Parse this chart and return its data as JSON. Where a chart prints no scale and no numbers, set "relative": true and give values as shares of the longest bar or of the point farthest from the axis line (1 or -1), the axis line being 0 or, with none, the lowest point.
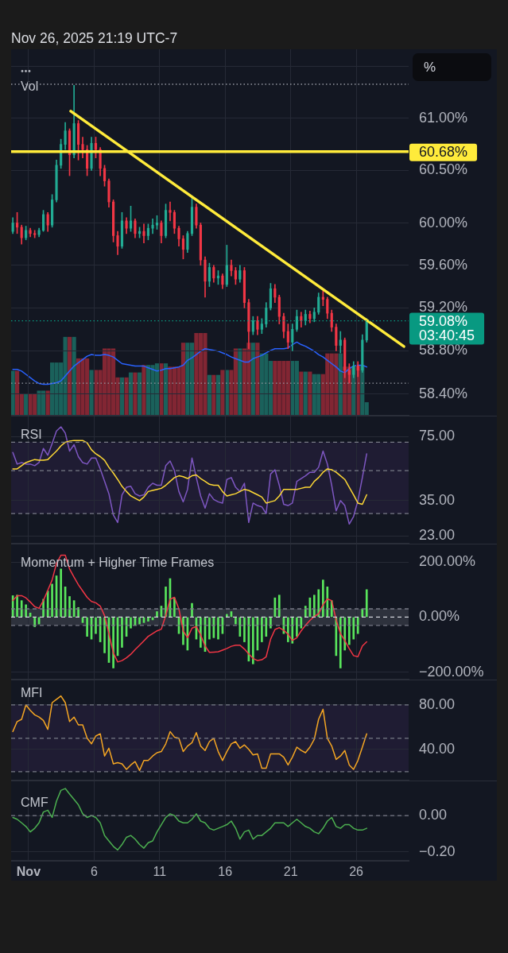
{
  "chart_data": [
    {
      "type": "candlestick",
      "subtitle": "Nov 26, 2025 21:19 UTC-7",
      "x": [
        -0.2,
        0.13,
        0.47,
        0.8,
        1.13,
        1.47,
        1.8,
        2.13,
        2.47,
        2.8,
        3.13,
        3.47,
        3.8,
        4.13,
        4.47,
        4.8,
        5.13,
        5.47,
        5.8,
        6.13,
        6.47,
        6.8,
        7.13,
        7.47,
        7.8,
        8.13,
        8.47,
        8.8,
        9.13,
        9.47,
        9.8,
        10.13,
        10.47,
        10.8,
        11.13,
        11.47,
        11.8,
        12.13,
        12.47,
        12.8,
        13.13,
        13.47,
        13.8,
        14.13,
        14.47,
        14.8,
        15.13,
        15.47,
        15.8,
        16.13,
        16.47,
        16.8,
        17.13,
        17.47,
        17.8,
        18.13,
        18.47,
        18.8,
        19.13,
        19.47,
        19.8,
        20.13,
        20.47,
        20.8,
        21.13,
        21.47,
        21.8,
        22.13,
        22.47,
        22.8,
        23.13,
        23.47,
        23.8,
        24.13,
        24.47,
        24.8,
        25.13,
        25.47,
        25.8,
        26.13,
        26.47,
        26.8
      ],
      "ohlc": [
        [
          59.92,
          60.05,
          59.9,
          60.0
        ],
        [
          60.0,
          60.1,
          59.9,
          59.96
        ],
        [
          59.96,
          59.98,
          59.8,
          59.86
        ],
        [
          59.86,
          59.97,
          59.84,
          59.93
        ],
        [
          59.93,
          59.95,
          59.87,
          59.9
        ],
        [
          59.9,
          59.93,
          59.86,
          59.89
        ],
        [
          59.89,
          59.95,
          59.87,
          59.93
        ],
        [
          59.93,
          60.12,
          59.92,
          60.08
        ],
        [
          60.08,
          60.1,
          59.92,
          59.98
        ],
        [
          59.98,
          60.27,
          59.96,
          60.22
        ],
        [
          60.22,
          60.6,
          60.2,
          60.55
        ],
        [
          60.55,
          60.8,
          60.52,
          60.75
        ],
        [
          60.75,
          60.96,
          60.7,
          60.88
        ],
        [
          60.88,
          60.9,
          60.45,
          60.65
        ],
        [
          60.65,
          61.32,
          60.62,
          60.95
        ],
        [
          60.95,
          60.98,
          60.6,
          60.75
        ],
        [
          60.75,
          60.82,
          60.62,
          60.7
        ],
        [
          60.7,
          60.74,
          60.45,
          60.52
        ],
        [
          60.52,
          60.82,
          60.5,
          60.76
        ],
        [
          60.76,
          60.82,
          60.62,
          60.7
        ],
        [
          60.7,
          60.72,
          60.45,
          60.52
        ],
        [
          60.52,
          60.55,
          60.35,
          60.4
        ],
        [
          60.4,
          60.42,
          60.15,
          60.2
        ],
        [
          60.2,
          60.22,
          59.82,
          59.88
        ],
        [
          59.88,
          59.92,
          59.7,
          59.78
        ],
        [
          59.78,
          60.1,
          59.76,
          60.02
        ],
        [
          60.02,
          60.05,
          59.9,
          59.95
        ],
        [
          59.95,
          60.16,
          59.92,
          60.02
        ],
        [
          60.02,
          60.04,
          59.86,
          59.9
        ],
        [
          59.9,
          59.96,
          59.86,
          59.92
        ],
        [
          59.92,
          59.99,
          59.81,
          59.88
        ],
        [
          59.88,
          59.99,
          59.84,
          59.95
        ],
        [
          59.95,
          60.04,
          59.9,
          59.98
        ],
        [
          59.98,
          60.07,
          59.94,
          60.0
        ],
        [
          60.0,
          60.02,
          59.81,
          59.88
        ],
        [
          59.88,
          60.18,
          59.86,
          60.12
        ],
        [
          60.12,
          60.2,
          60.02,
          60.1
        ],
        [
          60.1,
          60.12,
          59.9,
          59.95
        ],
        [
          59.95,
          59.97,
          59.78,
          59.85
        ],
        [
          59.85,
          59.88,
          59.66,
          59.75
        ],
        [
          59.75,
          59.92,
          59.72,
          59.9
        ],
        [
          59.9,
          60.24,
          59.88,
          60.15
        ],
        [
          60.15,
          60.18,
          59.95,
          59.98
        ],
        [
          59.98,
          60.0,
          59.6,
          59.65
        ],
        [
          59.65,
          59.68,
          59.3,
          59.45
        ],
        [
          59.45,
          59.62,
          59.4,
          59.58
        ],
        [
          59.58,
          59.6,
          59.44,
          59.48
        ],
        [
          59.48,
          59.55,
          59.42,
          59.5
        ],
        [
          59.5,
          59.52,
          59.38,
          59.42
        ],
        [
          59.42,
          59.79,
          59.4,
          59.6
        ],
        [
          59.6,
          59.65,
          59.5,
          59.55
        ],
        [
          59.55,
          59.58,
          59.42,
          59.47
        ],
        [
          59.47,
          59.6,
          59.44,
          59.55
        ],
        [
          59.55,
          59.58,
          59.2,
          59.25
        ],
        [
          59.25,
          59.28,
          58.82,
          58.98
        ],
        [
          58.98,
          59.12,
          58.95,
          59.08
        ],
        [
          59.08,
          59.12,
          58.95,
          59.0
        ],
        [
          59.0,
          59.1,
          58.96,
          59.05
        ],
        [
          59.05,
          59.25,
          59.02,
          59.2
        ],
        [
          59.2,
          59.43,
          59.18,
          59.38
        ],
        [
          59.38,
          59.42,
          59.25,
          59.3
        ],
        [
          59.3,
          59.32,
          59.05,
          59.12
        ],
        [
          59.12,
          59.15,
          58.92,
          58.98
        ],
        [
          58.98,
          59.05,
          58.82,
          58.88
        ],
        [
          58.88,
          59.05,
          58.8,
          59.0
        ],
        [
          59.0,
          59.18,
          58.98,
          59.12
        ],
        [
          59.12,
          59.16,
          59.02,
          59.08
        ],
        [
          59.08,
          59.18,
          59.04,
          59.14
        ],
        [
          59.14,
          59.17,
          59.06,
          59.1
        ],
        [
          59.1,
          59.2,
          59.07,
          59.16
        ],
        [
          59.16,
          59.34,
          59.14,
          59.3
        ],
        [
          59.3,
          59.36,
          59.22,
          59.28
        ],
        [
          59.28,
          59.3,
          59.1,
          59.15
        ],
        [
          59.15,
          59.18,
          58.98,
          59.02
        ],
        [
          59.02,
          59.05,
          58.8,
          58.85
        ],
        [
          58.85,
          58.98,
          58.78,
          58.9
        ],
        [
          58.9,
          58.92,
          58.55,
          58.62
        ],
        [
          58.62,
          58.68,
          58.5,
          58.58
        ],
        [
          58.58,
          58.7,
          58.55,
          58.66
        ],
        [
          58.66,
          58.7,
          58.56,
          58.62
        ],
        [
          58.62,
          58.95,
          58.6,
          58.9
        ],
        [
          58.9,
          59.1,
          58.88,
          59.08
        ]
      ],
      "colors": [
        "#22ab94",
        "#f23645",
        "#f23645",
        "#22ab94",
        "#f23645",
        "#f23645",
        "#22ab94",
        "#22ab94",
        "#f23645",
        "#22ab94",
        "#22ab94",
        "#22ab94",
        "#22ab94",
        "#f23645",
        "#22ab94",
        "#f23645",
        "#f23645",
        "#f23645",
        "#22ab94",
        "#f23645",
        "#f23645",
        "#f23645",
        "#f23645",
        "#f23645",
        "#f23645",
        "#22ab94",
        "#f23645",
        "#22ab94",
        "#f23645",
        "#22ab94",
        "#f23645",
        "#22ab94",
        "#22ab94",
        "#22ab94",
        "#f23645",
        "#22ab94",
        "#f23645",
        "#f23645",
        "#f23645",
        "#f23645",
        "#22ab94",
        "#22ab94",
        "#f23645",
        "#f23645",
        "#f23645",
        "#22ab94",
        "#f23645",
        "#22ab94",
        "#f23645",
        "#22ab94",
        "#f23645",
        "#f23645",
        "#22ab94",
        "#f23645",
        "#f23645",
        "#22ab94",
        "#f23645",
        "#22ab94",
        "#22ab94",
        "#22ab94",
        "#f23645",
        "#f23645",
        "#f23645",
        "#f23645",
        "#22ab94",
        "#22ab94",
        "#f23645",
        "#22ab94",
        "#f23645",
        "#22ab94",
        "#22ab94",
        "#f23645",
        "#f23645",
        "#f23645",
        "#f23645",
        "#22ab94",
        "#f23645",
        "#f23645",
        "#22ab94",
        "#f23645",
        "#22ab94",
        "#22ab94"
      ],
      "series": [
        {
          "type": "line",
          "x": [
            4.22,
            29.64
          ],
          "values": [
            61.07,
            58.84
          ],
          "color": "#ffeb3b"
        }
      ],
      "log": true,
      "xlim": [
        -0.33,
        30
      ],
      "ylim": [
        58.22,
        61.67
      ],
      "xticks": [
        {
          "value": 1,
          "label": null
        },
        {
          "value": 6,
          "label": null
        },
        {
          "value": 11,
          "label": null
        },
        {
          "value": 16,
          "label": null
        },
        {
          "value": 21,
          "label": null
        },
        {
          "value": 26,
          "label": null
        }
      ],
      "yticks": [
        {
          "value": 61.5,
          "label": null
        },
        {
          "value": 61,
          "label": "61.00%"
        },
        {
          "value": 60.5,
          "label": "60.50%"
        },
        {
          "value": 60,
          "label": "60.00%"
        },
        {
          "value": 59.6,
          "label": "59.60%"
        },
        {
          "value": 59.2,
          "label": "59.20%"
        },
        {
          "value": 58.8,
          "label": "58.80%"
        },
        {
          "value": 58.4,
          "label": "58.40%"
        }
      ],
      "grid": true,
      "tick_labels": "y",
      "ref_lines": [
        {
          "axis": "y",
          "value": 61.33,
          "color": "#9598a1",
          "line_style": "dotted"
        },
        {
          "axis": "y",
          "value": 58.5,
          "color": "#9598a1",
          "line_style": "dotted"
        },
        {
          "axis": "y",
          "value": 59.08,
          "label": "59.08%",
          "color": "#089981",
          "line_style": "dotted"
        },
        {
          "axis": "y",
          "value": 60.68,
          "label": "60.68%",
          "color": "#ffeb3b"
        }
      ],
      "annotations": [
        "03:40:45",
        "%"
      ]
    },
    {
      "type": "bar",
      "title": "Vol",
      "relative": true,
      "x": [
        -0.2,
        0.13,
        0.47,
        0.8,
        1.13,
        1.47,
        1.8,
        2.13,
        2.47,
        2.8,
        3.13,
        3.47,
        3.8,
        4.13,
        4.47,
        4.8,
        5.13,
        5.47,
        5.8,
        6.13,
        6.47,
        6.8,
        7.13,
        7.47,
        7.8,
        8.13,
        8.47,
        8.8,
        9.13,
        9.47,
        9.8,
        10.13,
        10.47,
        10.8,
        11.13,
        11.47,
        11.8,
        12.13,
        12.47,
        12.8,
        13.13,
        13.47,
        13.8,
        14.13,
        14.47,
        14.8,
        15.13,
        15.47,
        15.8,
        16.13,
        16.47,
        16.8,
        17.13,
        17.47,
        17.8,
        18.13,
        18.47,
        18.8,
        19.13,
        19.47,
        19.8,
        20.13,
        20.47,
        20.8,
        21.13,
        21.47,
        21.8,
        22.13,
        22.47,
        22.8,
        23.13,
        23.47,
        23.8,
        24.13,
        24.47,
        24.8,
        25.13,
        25.47,
        25.8,
        26.13,
        26.47,
        26.8
      ],
      "series": [
        {
          "type": "bar",
          "values": [
            0.54,
            0.54,
            0.26,
            0.26,
            0.26,
            0.26,
            0.3,
            0.3,
            0.3,
            0.64,
            0.64,
            0.64,
            0.95,
            0.95,
            0.95,
            0.69,
            0.69,
            0.69,
            0.55,
            0.55,
            0.55,
            0.81,
            0.81,
            0.81,
            0.46,
            0.46,
            0.46,
            0.52,
            0.52,
            0.52,
            0.61,
            0.61,
            0.61,
            0.63,
            0.63,
            0.63,
            0.59,
            0.59,
            0.59,
            0.88,
            0.88,
            0.88,
            1,
            1,
            1,
            0.49,
            0.49,
            0.49,
            0.55,
            0.55,
            0.55,
            0.81,
            0.81,
            0.81,
            0.88,
            0.88,
            0.88,
            0.75,
            0.75,
            0.66,
            0.66,
            0.66,
            0.66,
            0.66,
            0.66,
            0.66,
            0.53,
            0.53,
            0.53,
            0.5,
            0.5,
            0.5,
            0.75,
            0.75,
            0.75,
            0.75,
            0.59,
            0.59,
            0.59,
            0.61,
            0.61,
            0.16
          ],
          "colors": [
            "#1a615b",
            "#822633",
            "#822633",
            "#1a615b",
            "#822633",
            "#822633",
            "#1a615b",
            "#1a615b",
            "#822633",
            "#1a615b",
            "#1a615b",
            "#1a615b",
            "#1a615b",
            "#822633",
            "#1a615b",
            "#822633",
            "#822633",
            "#822633",
            "#1a615b",
            "#822633",
            "#822633",
            "#822633",
            "#822633",
            "#822633",
            "#822633",
            "#1a615b",
            "#822633",
            "#1a615b",
            "#822633",
            "#1a615b",
            "#822633",
            "#1a615b",
            "#1a615b",
            "#1a615b",
            "#822633",
            "#1a615b",
            "#822633",
            "#822633",
            "#822633",
            "#822633",
            "#1a615b",
            "#1a615b",
            "#822633",
            "#822633",
            "#822633",
            "#1a615b",
            "#822633",
            "#1a615b",
            "#822633",
            "#1a615b",
            "#822633",
            "#822633",
            "#1a615b",
            "#822633",
            "#822633",
            "#1a615b",
            "#822633",
            "#1a615b",
            "#1a615b",
            "#1a615b",
            "#822633",
            "#822633",
            "#822633",
            "#822633",
            "#1a615b",
            "#1a615b",
            "#822633",
            "#1a615b",
            "#822633",
            "#1a615b",
            "#1a615b",
            "#822633",
            "#822633",
            "#822633",
            "#822633",
            "#1a615b",
            "#822633",
            "#822633",
            "#1a615b",
            "#822633",
            "#1a615b",
            "#1a615b"
          ]
        },
        {
          "type": "line",
          "color": "#2962ff",
          "values": [
            0.56,
            0.56,
            0.54,
            0.5,
            0.46,
            0.42,
            0.39,
            0.38,
            0.38,
            0.39,
            0.4,
            0.42,
            0.48,
            0.54,
            0.6,
            0.64,
            0.68,
            0.72,
            0.74,
            0.73,
            0.73,
            0.74,
            0.73,
            0.71,
            0.67,
            0.63,
            0.62,
            0.61,
            0.6,
            0.6,
            0.6,
            0.58,
            0.56,
            0.54,
            0.55,
            0.57,
            0.57,
            0.58,
            0.59,
            0.61,
            0.67,
            0.7,
            0.74,
            0.78,
            0.81,
            0.8,
            0.79,
            0.78,
            0.76,
            0.74,
            0.71,
            0.69,
            0.67,
            0.65,
            0.65,
            0.69,
            0.71,
            0.73,
            0.76,
            0.79,
            0.81,
            0.81,
            0.81,
            0.82,
            0.86,
            0.89,
            0.86,
            0.84,
            0.81,
            0.78,
            0.74,
            0.71,
            0.67,
            0.63,
            0.59,
            0.54,
            0.52,
            0.57,
            0.6,
            0.61,
            0.61,
            0.59
          ]
        }
      ],
      "xlim": [
        -0.33,
        30
      ],
      "tick_labels": false
    },
    {
      "type": "line",
      "title": "RSI",
      "x": [
        -0.2,
        0.13,
        0.47,
        0.8,
        1.13,
        1.47,
        1.8,
        2.13,
        2.47,
        2.8,
        3.13,
        3.47,
        3.8,
        4.13,
        4.47,
        4.8,
        5.13,
        5.47,
        5.8,
        6.13,
        6.47,
        6.8,
        7.13,
        7.47,
        7.8,
        8.13,
        8.47,
        8.8,
        9.13,
        9.47,
        9.8,
        10.13,
        10.47,
        10.8,
        11.13,
        11.47,
        11.8,
        12.13,
        12.47,
        12.8,
        13.13,
        13.47,
        13.8,
        14.13,
        14.47,
        14.8,
        15.13,
        15.47,
        15.8,
        16.13,
        16.47,
        16.8,
        17.13,
        17.47,
        17.8,
        18.13,
        18.47,
        18.8,
        19.13,
        19.47,
        19.8,
        20.13,
        20.47,
        20.8,
        21.13,
        21.47,
        21.8,
        22.13,
        22.47,
        22.8,
        23.13,
        23.47,
        23.8,
        24.13,
        24.47,
        24.8,
        25.13,
        25.47,
        25.8,
        26.13,
        26.47,
        26.8
      ],
      "series": [
        {
          "color": "#7e57c2",
          "values": [
            62,
            54,
            55,
            54,
            54,
            53,
            55,
            65,
            60,
            69,
            80,
            84,
            78,
            63,
            68,
            59,
            55,
            54,
            58,
            58,
            51,
            44,
            38,
            29.5,
            27,
            37.5,
            41,
            41.5,
            38,
            37,
            37.5,
            41,
            43,
            42,
            42,
            53,
            56,
            50,
            39,
            34.5,
            40,
            58,
            46,
            37,
            32,
            38,
            35.5,
            34.5,
            34,
            45,
            46,
            41,
            39,
            43,
            27,
            34,
            33,
            32.5,
            30,
            48,
            50.5,
            42,
            33.5,
            33,
            34,
            44,
            45.5,
            47,
            49,
            49,
            52,
            63,
            54,
            42,
            31,
            35,
            33,
            26.5,
            29,
            35,
            46,
            61
          ]
        },
        {
          "color": "#fdd835",
          "values": [
            51,
            51,
            53,
            55,
            56,
            57,
            56.5,
            56.5,
            57,
            60,
            63,
            67,
            70,
            71,
            71.5,
            71.5,
            71.5,
            69.5,
            64,
            61,
            59,
            56.5,
            52,
            48.5,
            45,
            41.5,
            39,
            37,
            36,
            35,
            36.5,
            39,
            39.5,
            40,
            40.5,
            42,
            44,
            46,
            47,
            46.5,
            45.5,
            47,
            47.5,
            45.5,
            44,
            42.5,
            42,
            42,
            39,
            37,
            37.5,
            38,
            39,
            40,
            39.5,
            38.5,
            37.5,
            36.5,
            34,
            34.5,
            35,
            37,
            40,
            40,
            40,
            40,
            40.5,
            41,
            41,
            44,
            46,
            49,
            51,
            50.5,
            49,
            47,
            45,
            41,
            37.5,
            34,
            33.5,
            37.5
          ]
        }
      ],
      "log": true,
      "xlim": [
        -0.33,
        30
      ],
      "ylim": [
        21,
        95
      ],
      "xticks": [
        {
          "value": 1,
          "label": null
        },
        {
          "value": 6,
          "label": null
        },
        {
          "value": 11,
          "label": null
        },
        {
          "value": 16,
          "label": null
        },
        {
          "value": 21,
          "label": null
        },
        {
          "value": 26,
          "label": null
        }
      ],
      "yticks": [
        {
          "value": 75,
          "label": "75.00"
        },
        {
          "value": 35,
          "label": "35.00"
        },
        {
          "value": 23,
          "label": "23.00"
        }
      ],
      "grid": true,
      "tick_labels": "y",
      "ref_lines": [
        {
          "axis": "y",
          "value": 70,
          "color": "#787b86",
          "line_style": "dashed"
        },
        {
          "axis": "y",
          "value": 50,
          "color": "#787b86",
          "line_style": "dashed"
        },
        {
          "axis": "y",
          "value": 30,
          "color": "#787b86",
          "line_style": "dashed"
        }
      ],
      "bands": [
        {
          "axis": "y",
          "from": 30,
          "to": 70,
          "color": "#1f1c33"
        }
      ]
    },
    {
      "type": "bar",
      "title": "Momentum + Higher Time Frames",
      "x": [
        -0.2,
        0.13,
        0.47,
        0.8,
        1.13,
        1.47,
        1.8,
        2.13,
        2.47,
        2.8,
        3.13,
        3.47,
        3.8,
        4.13,
        4.47,
        4.8,
        5.13,
        5.47,
        5.8,
        6.13,
        6.47,
        6.8,
        7.13,
        7.47,
        7.8,
        8.13,
        8.47,
        8.8,
        9.13,
        9.47,
        9.8,
        10.13,
        10.47,
        10.8,
        11.13,
        11.47,
        11.8,
        12.13,
        12.47,
        12.8,
        13.13,
        13.47,
        13.8,
        14.13,
        14.47,
        14.8,
        15.13,
        15.47,
        15.8,
        16.13,
        16.47,
        16.8,
        17.13,
        17.47,
        17.8,
        18.13,
        18.47,
        18.8,
        19.13,
        19.47,
        19.8,
        20.13,
        20.47,
        20.8,
        21.13,
        21.47,
        21.8,
        22.13,
        22.47,
        22.8,
        23.13,
        23.47,
        23.8,
        24.13,
        24.47,
        24.8,
        25.13,
        25.47,
        25.8,
        26.13,
        26.47,
        26.8
      ],
      "series": [
        {
          "type": "bar",
          "color": "#59e65c",
          "values": [
            78,
            80,
            60,
            45,
            15,
            -35,
            -25,
            65,
            95,
            120,
            150,
            175,
            110,
            75,
            60,
            35,
            -20,
            -70,
            -80,
            -60,
            -90,
            -130,
            -165,
            -185,
            -140,
            -110,
            -70,
            -40,
            -30,
            -25,
            -20,
            -15,
            -10,
            20,
            40,
            110,
            140,
            70,
            -60,
            -100,
            -120,
            50,
            -80,
            -110,
            -125,
            -80,
            -75,
            -80,
            -60,
            10,
            20,
            -25,
            -70,
            -90,
            -160,
            -170,
            -120,
            -90,
            -70,
            -40,
            70,
            80,
            -60,
            -90,
            -95,
            -70,
            -40,
            40,
            70,
            80,
            100,
            135,
            110,
            60,
            -140,
            -185,
            -120,
            -100,
            -80,
            -60,
            30,
            100
          ]
        },
        {
          "type": "line",
          "color": "#f23645",
          "values": [
            60,
            78,
            78,
            70,
            55,
            38,
            32,
            60,
            98,
            135,
            195,
            225,
            225,
            175,
            145,
            118,
            95,
            72,
            57,
            52,
            40,
            5,
            -60,
            -130,
            -163,
            -158,
            -148,
            -135,
            -118,
            -102,
            -86,
            -70,
            -60,
            -50,
            -44,
            6,
            65,
            72,
            30,
            -50,
            -75,
            -40,
            -34,
            -65,
            -105,
            -128,
            -127,
            -126,
            -120,
            -114,
            -106,
            -102,
            -102,
            -116,
            -134,
            -150,
            -158,
            -155,
            -144,
            -80,
            -45,
            -38,
            -48,
            -62,
            -85,
            -75,
            -50,
            -30,
            -12,
            2,
            12,
            45,
            66,
            60,
            -10,
            -60,
            -85,
            -115,
            -140,
            -144,
            -105,
            -90
          ]
        }
      ],
      "xlim": [
        -0.33,
        30
      ],
      "ylim": [
        -227,
        264
      ],
      "xticks": [
        {
          "value": 1,
          "label": null
        },
        {
          "value": 6,
          "label": null
        },
        {
          "value": 11,
          "label": null
        },
        {
          "value": 16,
          "label": null
        },
        {
          "value": 21,
          "label": null
        },
        {
          "value": 26,
          "label": null
        }
      ],
      "yticks": [
        {
          "value": 200,
          "label": "200.00%"
        },
        {
          "value": 0,
          "label": "0.00%"
        },
        {
          "value": -200,
          "label": "−200.00%"
        }
      ],
      "grid": true,
      "tick_labels": "y",
      "ref_lines": [
        {
          "axis": "y",
          "value": 30,
          "color": "#787b86",
          "line_style": "dashed"
        },
        {
          "axis": "y",
          "value": 0,
          "color": "#d1d4dc",
          "line_style": "dashed"
        },
        {
          "axis": "y",
          "value": -30,
          "color": "#787b86",
          "line_style": "dashed"
        }
      ],
      "bands": [
        {
          "axis": "y",
          "from": -30,
          "to": 30,
          "color": "#2e323d"
        }
      ]
    },
    {
      "type": "line",
      "title": "MFI",
      "x": [
        -0.2,
        0.13,
        0.47,
        0.8,
        1.13,
        1.47,
        1.8,
        2.13,
        2.47,
        2.8,
        3.13,
        3.47,
        3.8,
        4.13,
        4.47,
        4.8,
        5.13,
        5.47,
        5.8,
        6.13,
        6.47,
        6.8,
        7.13,
        7.47,
        7.8,
        8.13,
        8.47,
        8.8,
        9.13,
        9.47,
        9.8,
        10.13,
        10.47,
        10.8,
        11.13,
        11.47,
        11.8,
        12.13,
        12.47,
        12.8,
        13.13,
        13.47,
        13.8,
        14.13,
        14.47,
        14.8,
        15.13,
        15.47,
        15.8,
        16.13,
        16.47,
        16.8,
        17.13,
        17.47,
        17.8,
        18.13,
        18.47,
        18.8,
        19.13,
        19.47,
        19.8,
        20.13,
        20.47,
        20.8,
        21.13,
        21.47,
        21.8,
        22.13,
        22.47,
        22.8,
        23.13,
        23.47,
        23.8,
        24.13,
        24.47,
        24.8,
        25.13,
        25.47,
        25.8,
        26.13,
        26.47,
        26.8
      ],
      "series": [
        {
          "color": "#f5a623",
          "values": [
            56,
            65,
            67,
            80,
            75,
            71,
            69,
            66,
            58,
            82,
            85,
            88,
            82,
            65,
            69,
            62,
            62,
            50,
            45,
            52,
            54,
            34,
            41,
            27,
            28,
            27,
            22,
            26,
            29,
            21,
            30,
            30,
            34,
            37,
            38,
            45,
            56,
            51,
            50,
            38,
            43,
            46,
            55,
            43,
            39,
            47,
            50,
            38,
            30,
            38,
            45,
            47,
            41,
            44,
            40,
            35,
            36,
            23,
            23,
            36,
            36,
            36,
            33,
            26,
            33,
            42,
            39,
            37,
            42,
            49,
            67,
            76,
            50,
            43,
            31,
            34,
            39,
            26,
            22,
            30,
            42,
            54
          ]
        }
      ],
      "xlim": [
        -0.33,
        30
      ],
      "ylim": [
        12,
        102
      ],
      "xticks": [
        {
          "value": 1,
          "label": null
        },
        {
          "value": 6,
          "label": null
        },
        {
          "value": 11,
          "label": null
        },
        {
          "value": 16,
          "label": null
        },
        {
          "value": 21,
          "label": null
        },
        {
          "value": 26,
          "label": null
        }
      ],
      "yticks": [
        {
          "value": 80,
          "label": "80.00"
        },
        {
          "value": 40,
          "label": "40.00"
        }
      ],
      "grid": true,
      "tick_labels": "y",
      "ref_lines": [
        {
          "axis": "y",
          "value": 80,
          "color": "#787b86",
          "line_style": "dashed"
        },
        {
          "axis": "y",
          "value": 50,
          "color": "#787b86",
          "line_style": "dashed"
        },
        {
          "axis": "y",
          "value": 20,
          "color": "#787b86",
          "line_style": "dashed"
        }
      ],
      "bands": [
        {
          "axis": "y",
          "from": 20,
          "to": 80,
          "color": "#1f1c33"
        }
      ]
    },
    {
      "type": "line",
      "title": "CMF",
      "x": [
        -0.2,
        0.13,
        0.47,
        0.8,
        1.13,
        1.47,
        1.8,
        2.13,
        2.47,
        2.8,
        3.13,
        3.47,
        3.8,
        4.13,
        4.47,
        4.8,
        5.13,
        5.47,
        5.8,
        6.13,
        6.47,
        6.8,
        7.13,
        7.47,
        7.8,
        8.13,
        8.47,
        8.8,
        9.13,
        9.47,
        9.8,
        10.13,
        10.47,
        10.8,
        11.13,
        11.47,
        11.8,
        12.13,
        12.47,
        12.8,
        13.13,
        13.47,
        13.8,
        14.13,
        14.47,
        14.8,
        15.13,
        15.47,
        15.8,
        16.13,
        16.47,
        16.8,
        17.13,
        17.47,
        17.8,
        18.13,
        18.47,
        18.8,
        19.13,
        19.47,
        19.8,
        20.13,
        20.47,
        20.8,
        21.13,
        21.47,
        21.8,
        22.13,
        22.47,
        22.8,
        23.13,
        23.47,
        23.8,
        24.13,
        24.47,
        24.8,
        25.13,
        25.47,
        25.8,
        26.13,
        26.47,
        26.8
      ],
      "series": [
        {
          "color": "#4caf50",
          "values": [
            -0.01,
            -0.02,
            -0.04,
            -0.06,
            -0.09,
            -0.07,
            -0.04,
            0.02,
            0.03,
            -0.01,
            0.08,
            0.14,
            0.15,
            0.12,
            0.09,
            0.06,
            0.01,
            -0.01,
            0,
            -0.01,
            -0.04,
            -0.11,
            -0.14,
            -0.17,
            -0.19,
            -0.16,
            -0.12,
            -0.11,
            -0.13,
            -0.16,
            -0.18,
            -0.15,
            -0.14,
            -0.09,
            -0.05,
            -0.01,
            0.01,
            0,
            -0.03,
            -0.04,
            -0.04,
            -0.02,
            0.01,
            -0.03,
            -0.04,
            -0.07,
            -0.08,
            -0.07,
            -0.06,
            -0.05,
            -0.03,
            -0.07,
            -0.13,
            -0.09,
            -0.08,
            -0.13,
            -0.11,
            -0.11,
            -0.09,
            -0.07,
            -0.04,
            -0.04,
            -0.04,
            -0.06,
            -0.04,
            -0.02,
            -0.04,
            -0.06,
            -0.07,
            -0.09,
            -0.1,
            -0.07,
            -0.03,
            -0.01,
            -0.06,
            -0.07,
            -0.05,
            -0.05,
            -0.07,
            -0.08,
            -0.08,
            -0.07
          ]
        }
      ],
      "xlim": [
        -0.33,
        30
      ],
      "ylim": [
        -0.25,
        0.19
      ],
      "xticks": [
        {
          "value": 1,
          "label": "Nov"
        },
        6,
        11,
        16,
        21,
        26
      ],
      "yticks": [
        {
          "value": 0,
          "label": "0.00"
        },
        {
          "value": -0.2,
          "label": "−0.20"
        }
      ],
      "grid": true,
      "ref_lines": [
        {
          "axis": "y",
          "value": 0,
          "color": "#787b86",
          "line_style": "dashed"
        }
      ]
    }
  ]
}
